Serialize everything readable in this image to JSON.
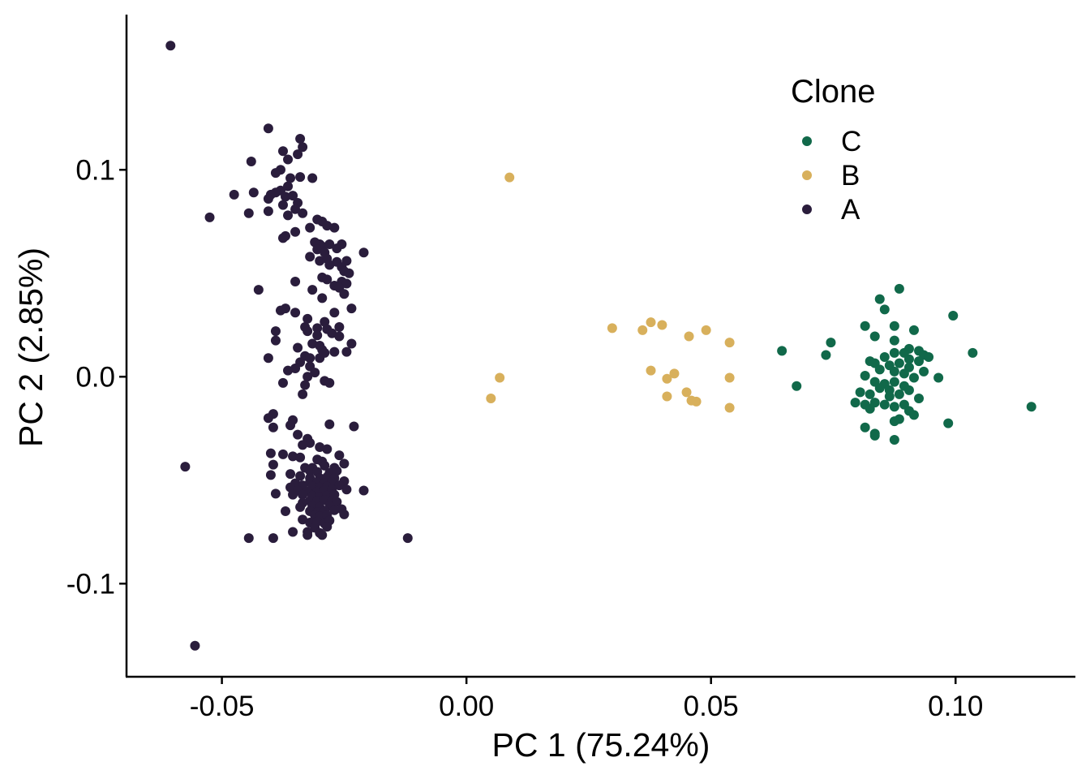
{
  "chart_data": {
    "type": "scatter",
    "xlabel": "PC 1 (75.24%)",
    "ylabel": "PC 2 (2.85%)",
    "xlim": [
      -0.0695,
      0.1245
    ],
    "ylim": [
      -0.145,
      0.175
    ],
    "x_ticks": [
      -0.05,
      0.0,
      0.05,
      0.1
    ],
    "x_tick_labels": [
      "-0.05",
      "0.00",
      "0.05",
      "0.10"
    ],
    "y_ticks": [
      0.1,
      0.0,
      -0.1
    ],
    "y_tick_labels": [
      "0.1",
      "0.0",
      "-0.1"
    ],
    "grid": false,
    "legend": {
      "title": "Clone",
      "position": "top-right",
      "entries": [
        {
          "label": "C",
          "color": "#11694a"
        },
        {
          "label": "B",
          "color": "#d8b05c"
        },
        {
          "label": "A",
          "color": "#2a1d3c"
        }
      ]
    },
    "series": [
      {
        "name": "C",
        "color": "#11694a",
        "points": [
          [
            0.0885,
            0.0425
          ],
          [
            0.0845,
            0.0375
          ],
          [
            0.0855,
            0.0325
          ],
          [
            0.0995,
            0.0295
          ],
          [
            0.0815,
            0.0245
          ],
          [
            0.0875,
            0.0245
          ],
          [
            0.0915,
            0.0225
          ],
          [
            0.0835,
            0.0195
          ],
          [
            0.0875,
            0.0175
          ],
          [
            0.0745,
            0.0165
          ],
          [
            0.0645,
            0.0125
          ],
          [
            0.0905,
            0.0135
          ],
          [
            0.0925,
            0.0125
          ],
          [
            0.0875,
            0.0115
          ],
          [
            0.0895,
            0.0115
          ],
          [
            0.0935,
            0.0105
          ],
          [
            0.1035,
            0.0115
          ],
          [
            0.0735,
            0.0105
          ],
          [
            0.0855,
            0.0095
          ],
          [
            0.0905,
            0.0085
          ],
          [
            0.0945,
            0.0095
          ],
          [
            0.0825,
            0.0075
          ],
          [
            0.0835,
            0.0065
          ],
          [
            0.0885,
            0.0065
          ],
          [
            0.0925,
            0.0075
          ],
          [
            0.0865,
            0.0055
          ],
          [
            0.0905,
            0.0045
          ],
          [
            0.0845,
            0.0035
          ],
          [
            0.0875,
            0.0025
          ],
          [
            0.0935,
            0.0025
          ],
          [
            0.0815,
            0.0005
          ],
          [
            0.0895,
            0.0015
          ],
          [
            0.0915,
            -0.0005
          ],
          [
            0.0965,
            -0.0005
          ],
          [
            0.0835,
            -0.0025
          ],
          [
            0.0855,
            -0.0035
          ],
          [
            0.0875,
            -0.0025
          ],
          [
            0.0675,
            -0.0045
          ],
          [
            0.0895,
            -0.0045
          ],
          [
            0.0845,
            -0.0055
          ],
          [
            0.0865,
            -0.0065
          ],
          [
            0.0905,
            -0.0065
          ],
          [
            0.0805,
            -0.0075
          ],
          [
            0.0825,
            -0.0085
          ],
          [
            0.0885,
            -0.0085
          ],
          [
            0.0865,
            -0.0095
          ],
          [
            0.0925,
            -0.0105
          ],
          [
            0.0795,
            -0.0125
          ],
          [
            0.0835,
            -0.0125
          ],
          [
            0.0815,
            -0.0135
          ],
          [
            0.0855,
            -0.0135
          ],
          [
            0.0895,
            -0.0135
          ],
          [
            0.0875,
            -0.0145
          ],
          [
            0.1155,
            -0.0145
          ],
          [
            0.0825,
            -0.0155
          ],
          [
            0.0905,
            -0.0165
          ],
          [
            0.0915,
            -0.0185
          ],
          [
            0.0885,
            -0.0205
          ],
          [
            0.0875,
            -0.0215
          ],
          [
            0.0985,
            -0.0225
          ],
          [
            0.0815,
            -0.0245
          ],
          [
            0.0835,
            -0.0275
          ],
          [
            0.0835,
            -0.0285
          ],
          [
            0.0875,
            -0.0305
          ]
        ]
      },
      {
        "name": "B",
        "color": "#d8b05c",
        "points": [
          [
            0.0088,
            0.0963
          ],
          [
            0.0377,
            0.0263
          ],
          [
            0.04,
            0.025
          ],
          [
            0.0298,
            0.0235
          ],
          [
            0.036,
            0.0225
          ],
          [
            0.049,
            0.0225
          ],
          [
            0.0455,
            0.0195
          ],
          [
            0.0538,
            0.0165
          ],
          [
            0.0377,
            0.003
          ],
          [
            0.0425,
            0.0015
          ],
          [
            0.0068,
            -0.0005
          ],
          [
            0.041,
            -0.001
          ],
          [
            0.0538,
            -0.0005
          ],
          [
            0.045,
            -0.0075
          ],
          [
            0.005,
            -0.0105
          ],
          [
            0.041,
            -0.0095
          ],
          [
            0.046,
            -0.0115
          ],
          [
            0.047,
            -0.012
          ],
          [
            0.0538,
            -0.015
          ]
        ]
      },
      {
        "name": "A",
        "color": "#2a1d3c",
        "points": [
          [
            -0.0605,
            0.16
          ],
          [
            -0.0405,
            0.12
          ],
          [
            -0.034,
            0.115
          ],
          [
            -0.0345,
            0.1075
          ],
          [
            -0.0335,
            0.111
          ],
          [
            -0.0375,
            0.109
          ],
          [
            -0.0365,
            0.105
          ],
          [
            -0.044,
            0.104
          ],
          [
            -0.038,
            0.1
          ],
          [
            -0.039,
            0.0985
          ],
          [
            -0.036,
            0.096
          ],
          [
            -0.034,
            0.0965
          ],
          [
            -0.0315,
            0.096
          ],
          [
            -0.038,
            0.09
          ],
          [
            -0.0365,
            0.092
          ],
          [
            -0.039,
            0.089
          ],
          [
            -0.04,
            0.088
          ],
          [
            -0.037,
            0.087
          ],
          [
            -0.0355,
            0.0875
          ],
          [
            -0.0405,
            0.086
          ],
          [
            -0.0435,
            0.089
          ],
          [
            -0.0475,
            0.088
          ],
          [
            -0.0345,
            0.084
          ],
          [
            -0.0375,
            0.083
          ],
          [
            -0.035,
            0.081
          ],
          [
            -0.0405,
            0.08
          ],
          [
            -0.0445,
            0.079
          ],
          [
            -0.0525,
            0.077
          ],
          [
            -0.0365,
            0.078
          ],
          [
            -0.0335,
            0.079
          ],
          [
            -0.0305,
            0.076
          ],
          [
            -0.0295,
            0.075
          ],
          [
            -0.0285,
            0.073
          ],
          [
            -0.027,
            0.072
          ],
          [
            -0.032,
            0.072
          ],
          [
            -0.035,
            0.07
          ],
          [
            -0.037,
            0.068
          ],
          [
            -0.0375,
            0.067
          ],
          [
            -0.031,
            0.065
          ],
          [
            -0.03,
            0.064
          ],
          [
            -0.0295,
            0.063
          ],
          [
            -0.028,
            0.064
          ],
          [
            -0.0255,
            0.064
          ],
          [
            -0.0265,
            0.062
          ],
          [
            -0.0305,
            0.0615
          ],
          [
            -0.029,
            0.06
          ],
          [
            -0.021,
            0.06
          ],
          [
            -0.032,
            0.058
          ],
          [
            -0.03,
            0.056
          ],
          [
            -0.0285,
            0.057
          ],
          [
            -0.0265,
            0.0555
          ],
          [
            -0.0245,
            0.056
          ],
          [
            -0.028,
            0.054
          ],
          [
            -0.0255,
            0.053
          ],
          [
            -0.025,
            0.051
          ],
          [
            -0.024,
            0.05
          ],
          [
            -0.0295,
            0.048
          ],
          [
            -0.0285,
            0.047
          ],
          [
            -0.0255,
            0.046
          ],
          [
            -0.0245,
            0.045
          ],
          [
            -0.035,
            0.046
          ],
          [
            -0.027,
            0.044
          ],
          [
            -0.026,
            0.043
          ],
          [
            -0.0315,
            0.042
          ],
          [
            -0.025,
            0.04
          ],
          [
            -0.0425,
            0.042
          ],
          [
            -0.0295,
            0.038
          ],
          [
            -0.0235,
            0.033
          ],
          [
            -0.027,
            0.031
          ],
          [
            -0.037,
            0.033
          ],
          [
            -0.038,
            0.032
          ],
          [
            -0.035,
            0.031
          ],
          [
            -0.0325,
            0.028
          ],
          [
            -0.029,
            0.0265
          ],
          [
            -0.0305,
            0.0235
          ],
          [
            -0.033,
            0.024
          ],
          [
            -0.0285,
            0.023
          ],
          [
            -0.026,
            0.024
          ],
          [
            -0.039,
            0.022
          ],
          [
            -0.0325,
            0.022
          ],
          [
            -0.0305,
            0.02
          ],
          [
            -0.0275,
            0.021
          ],
          [
            -0.026,
            0.0195
          ],
          [
            -0.039,
            0.0175
          ],
          [
            -0.0315,
            0.016
          ],
          [
            -0.03,
            0.015
          ],
          [
            -0.0235,
            0.016
          ],
          [
            -0.0345,
            0.014
          ],
          [
            -0.0295,
            0.013
          ],
          [
            -0.029,
            0.0115
          ],
          [
            -0.027,
            0.012
          ],
          [
            -0.0245,
            0.012
          ],
          [
            -0.033,
            0.01
          ],
          [
            -0.032,
            0.009
          ],
          [
            -0.03,
            0.009
          ],
          [
            -0.0405,
            0.009
          ],
          [
            -0.034,
            0.007
          ],
          [
            -0.032,
            0.005
          ],
          [
            -0.035,
            0.004
          ],
          [
            -0.0365,
            0.003
          ],
          [
            -0.031,
            0.002
          ],
          [
            -0.0325,
            0.0
          ],
          [
            -0.029,
            -0.002
          ],
          [
            -0.0375,
            -0.003
          ],
          [
            -0.033,
            -0.004
          ],
          [
            -0.028,
            -0.003
          ],
          [
            -0.0335,
            -0.0085
          ],
          [
            -0.0395,
            -0.018
          ],
          [
            -0.0405,
            -0.02
          ],
          [
            -0.0355,
            -0.021
          ],
          [
            -0.0395,
            -0.0245
          ],
          [
            -0.036,
            -0.0235
          ],
          [
            -0.028,
            -0.023
          ],
          [
            -0.023,
            -0.024
          ],
          [
            -0.0345,
            -0.028
          ],
          [
            -0.0325,
            -0.03
          ],
          [
            -0.032,
            -0.032
          ],
          [
            -0.0335,
            -0.033
          ],
          [
            -0.03,
            -0.034
          ],
          [
            -0.0285,
            -0.035
          ],
          [
            -0.04,
            -0.037
          ],
          [
            -0.0375,
            -0.0375
          ],
          [
            -0.0355,
            -0.0385
          ],
          [
            -0.034,
            -0.039
          ],
          [
            -0.026,
            -0.038
          ],
          [
            -0.0305,
            -0.04
          ],
          [
            -0.0295,
            -0.041
          ],
          [
            -0.0395,
            -0.0425
          ],
          [
            -0.033,
            -0.044
          ],
          [
            -0.0315,
            -0.044
          ],
          [
            -0.029,
            -0.043
          ],
          [
            -0.027,
            -0.044
          ],
          [
            -0.025,
            -0.042
          ],
          [
            -0.0575,
            -0.0435
          ],
          [
            -0.032,
            -0.0455
          ],
          [
            -0.0305,
            -0.046
          ],
          [
            -0.028,
            -0.0465
          ],
          [
            -0.0265,
            -0.0455
          ],
          [
            -0.036,
            -0.047
          ],
          [
            -0.034,
            -0.048
          ],
          [
            -0.032,
            -0.049
          ],
          [
            -0.03,
            -0.049
          ],
          [
            -0.0285,
            -0.0485
          ],
          [
            -0.027,
            -0.049
          ],
          [
            -0.04,
            -0.0475
          ],
          [
            -0.032,
            -0.051
          ],
          [
            -0.0305,
            -0.051
          ],
          [
            -0.029,
            -0.0515
          ],
          [
            -0.0275,
            -0.051
          ],
          [
            -0.025,
            -0.0505
          ],
          [
            -0.035,
            -0.0515
          ],
          [
            -0.0335,
            -0.0525
          ],
          [
            -0.0315,
            -0.053
          ],
          [
            -0.03,
            -0.0535
          ],
          [
            -0.0285,
            -0.053
          ],
          [
            -0.026,
            -0.0525
          ],
          [
            -0.036,
            -0.0535
          ],
          [
            -0.0345,
            -0.055
          ],
          [
            -0.0325,
            -0.0555
          ],
          [
            -0.0305,
            -0.0555
          ],
          [
            -0.029,
            -0.055
          ],
          [
            -0.0275,
            -0.0545
          ],
          [
            -0.0245,
            -0.0545
          ],
          [
            -0.0355,
            -0.057
          ],
          [
            -0.0335,
            -0.057
          ],
          [
            -0.0315,
            -0.0575
          ],
          [
            -0.03,
            -0.058
          ],
          [
            -0.0285,
            -0.0575
          ],
          [
            -0.027,
            -0.057
          ],
          [
            -0.021,
            -0.055
          ],
          [
            -0.039,
            -0.0565
          ],
          [
            -0.032,
            -0.06
          ],
          [
            -0.0305,
            -0.06
          ],
          [
            -0.029,
            -0.0595
          ],
          [
            -0.0275,
            -0.06
          ],
          [
            -0.0265,
            -0.0605
          ],
          [
            -0.0335,
            -0.061
          ],
          [
            -0.0315,
            -0.0625
          ],
          [
            -0.03,
            -0.063
          ],
          [
            -0.028,
            -0.0625
          ],
          [
            -0.034,
            -0.063
          ],
          [
            -0.032,
            -0.065
          ],
          [
            -0.0305,
            -0.0655
          ],
          [
            -0.029,
            -0.065
          ],
          [
            -0.027,
            -0.0645
          ],
          [
            -0.0255,
            -0.064
          ],
          [
            -0.037,
            -0.065
          ],
          [
            -0.031,
            -0.067
          ],
          [
            -0.03,
            -0.0675
          ],
          [
            -0.0285,
            -0.067
          ],
          [
            -0.025,
            -0.0665
          ],
          [
            -0.0335,
            -0.069
          ],
          [
            -0.032,
            -0.0705
          ],
          [
            -0.0305,
            -0.07
          ],
          [
            -0.029,
            -0.071
          ],
          [
            -0.028,
            -0.0695
          ],
          [
            -0.031,
            -0.073
          ],
          [
            -0.0285,
            -0.0725
          ],
          [
            -0.0355,
            -0.075
          ],
          [
            -0.0325,
            -0.075
          ],
          [
            -0.03,
            -0.0755
          ],
          [
            -0.0325,
            -0.0765
          ],
          [
            -0.0295,
            -0.0765
          ],
          [
            -0.0395,
            -0.078
          ],
          [
            -0.0445,
            -0.078
          ],
          [
            -0.012,
            -0.078
          ],
          [
            -0.0555,
            -0.13
          ]
        ]
      }
    ]
  }
}
